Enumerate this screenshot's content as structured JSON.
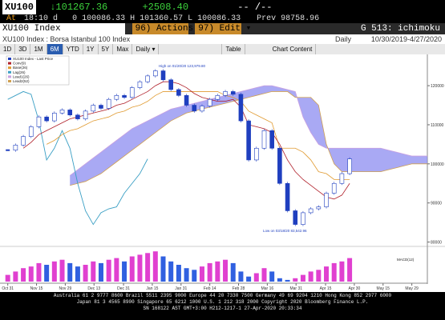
{
  "header": {
    "ticker": "XU100",
    "last": "↓101267.36",
    "change": "+2508.40",
    "bidask": "-- /--",
    "at": "At",
    "time": "18:10 d",
    "quote": "0 100086.33  H 101360.57  L 100086.33",
    "prev": "Prev 98758.96",
    "security": "XU100 Index",
    "actions": "96) Actions ▾",
    "edit": "97) Edit ▾",
    "function": "G 513: ichimoku",
    "description": "XU100 Index : Borsa Istanbul 100 Index",
    "period": "Daily",
    "range": "10/30/2019-4/27/2020"
  },
  "toolbar": {
    "ranges": [
      "1D",
      "3D",
      "1M",
      "6M",
      "YTD",
      "1Y",
      "5Y",
      "Max"
    ],
    "selected_index": 3,
    "frequency": "Daily ▾",
    "table": "Table",
    "content": "Chart Content"
  },
  "chart_data": {
    "type": "candlestick",
    "xlim": [
      -1,
      54
    ],
    "ylim": [
      79500,
      128000
    ],
    "yticks": [
      80000,
      90000,
      100000,
      110000,
      120000
    ],
    "xticks": [
      {
        "value": 0,
        "label": "Oct 31"
      },
      {
        "value": 3.7,
        "label": "Nov 15"
      },
      {
        "value": 7.4,
        "label": "Nov 29"
      },
      {
        "value": 11.1,
        "label": "Dec 13"
      },
      {
        "value": 14.9,
        "label": "Dec 31"
      },
      {
        "value": 18.6,
        "label": "Jan 15"
      },
      {
        "value": 22.3,
        "label": "Jan 31"
      },
      {
        "value": 26,
        "label": "Feb 14"
      },
      {
        "value": 29.7,
        "label": "Feb 28"
      },
      {
        "value": 33.4,
        "label": "Mar 16"
      },
      {
        "value": 37.1,
        "label": "Mar 31"
      },
      {
        "value": 40.9,
        "label": "Apr 15"
      },
      {
        "value": 44.6,
        "label": "Apr 30"
      },
      {
        "value": 48.3,
        "label": "May 15"
      },
      {
        "value": 52,
        "label": "May 29"
      }
    ],
    "cloud_color": "#8c8cf0",
    "series": [
      {
        "name": "XU100 Index - Last Price",
        "color": "#1f3fbf",
        "values": [
          103500,
          104800,
          107000,
          109500,
          112000,
          111000,
          113000,
          113800,
          112500,
          111500,
          113500,
          115000,
          114200,
          116500,
          117500,
          117000,
          119500,
          121000,
          122500,
          123800,
          121500,
          119000,
          117500,
          115000,
          113500,
          114800,
          116500,
          117500,
          118500,
          117800,
          111000,
          101000,
          104000,
          108500,
          104000,
          95000,
          88000,
          84500,
          87500,
          88500,
          89000,
          92500,
          95000,
          97500,
          101267
        ]
      },
      {
        "name": "Conv(9)",
        "color": "#b0202a",
        "values": [
          null,
          null,
          104000,
          105500,
          107500,
          108500,
          109500,
          110500,
          111500,
          112000,
          112500,
          113000,
          113500,
          114000,
          115000,
          115500,
          116500,
          117500,
          118500,
          120000,
          121000,
          121000,
          120500,
          119500,
          118000,
          117000,
          116500,
          116000,
          116000,
          116500,
          114500,
          110000,
          109500,
          109000,
          108000,
          105000,
          101000,
          98000,
          96000,
          94500,
          93000,
          91500,
          91000,
          92000,
          95000
        ]
      },
      {
        "name": "Base(26)",
        "color": "#e09a30",
        "values": [
          null,
          null,
          null,
          null,
          null,
          105000,
          106000,
          107500,
          108500,
          109000,
          110000,
          111000,
          111500,
          112000,
          113000,
          113500,
          114500,
          115000,
          116000,
          117500,
          118500,
          118500,
          118500,
          118500,
          118500,
          118500,
          118500,
          118500,
          117500,
          117000,
          116000,
          113500,
          112500,
          111500,
          110500,
          104000,
          104000,
          104000,
          103000,
          101000,
          98000,
          97500,
          96000,
          96000,
          96000
        ]
      },
      {
        "name": "Lag(26)",
        "color": "#3a9fc4",
        "values": [
          116500,
          117500,
          118500,
          117800,
          111000,
          101000,
          104000,
          108500,
          104000,
          95000,
          88000,
          84500,
          87500,
          88500,
          89000,
          92500,
          95000,
          97500,
          101267
        ]
      },
      {
        "name": "Lead1(26)",
        "color": "#c9a0e0",
        "values": [
          null,
          null,
          null,
          null,
          null,
          null,
          null,
          null,
          97000,
          98500,
          100000,
          101500,
          103000,
          104500,
          106000,
          107500,
          109000,
          110000,
          111000,
          112000,
          113000,
          114000,
          114500,
          115000,
          115500,
          116000,
          116500,
          117000,
          117500,
          118000,
          118500,
          119000,
          119500,
          120000,
          120000,
          119500,
          119000,
          118500,
          112000,
          108000,
          105000,
          104000,
          104000,
          104000,
          104000,
          104000,
          104000,
          104000,
          104000,
          103500,
          103000,
          102500,
          102000,
          102000,
          102000
        ]
      },
      {
        "name": "Lead2(52)",
        "color": "#d0a050",
        "values": [
          null,
          null,
          null,
          null,
          null,
          null,
          null,
          null,
          94500,
          95000,
          95500,
          96500,
          97500,
          99000,
          100500,
          102000,
          103500,
          105000,
          106500,
          108000,
          109500,
          111000,
          112000,
          113000,
          113500,
          114000,
          114500,
          115000,
          115500,
          116000,
          116500,
          117000,
          117500,
          118000,
          118500,
          118500,
          118500,
          117000,
          117000,
          117000,
          115000,
          105000,
          100000,
          98000,
          98000,
          98000,
          98000,
          98000,
          98000,
          98500,
          99000,
          99500,
          100000,
          100000,
          100000
        ]
      }
    ],
    "annotations": [
      "High on 01/20/20 123,979.80",
      "Low on 03/18/20 83,542.96"
    ],
    "indicator": {
      "type": "bar",
      "name": "MACD(12)",
      "ylim": [
        0,
        20
      ],
      "colors": [
        "#e040d0",
        "#3060e0"
      ],
      "values": [
        4,
        6,
        8,
        9,
        11,
        10,
        12,
        13,
        11,
        9,
        10,
        12,
        11,
        13,
        14,
        12,
        15,
        16,
        17,
        18,
        15,
        12,
        10,
        8,
        7,
        9,
        11,
        12,
        13,
        11,
        6,
        3,
        5,
        8,
        6,
        2,
        1,
        2,
        4,
        6,
        7,
        9,
        11,
        12,
        14
      ]
    }
  },
  "footer": {
    "lines": [
      "Australia 61 2 9777 8600 Brazil 5511 2395 9000 Europe 44 20 7330 7500 Germany 49 69 9204 1210 Hong Kong 852 2977 6000",
      "Japan 81 3 4565 8900 Singapore 65 6212 1000 U.S. 1 212 318 2000 Copyright 2020 Bloomberg Finance L.P.",
      "SN 168122 AST GMT+3:00 H212-1217-1 27-Apr-2020 20:33:34"
    ]
  }
}
